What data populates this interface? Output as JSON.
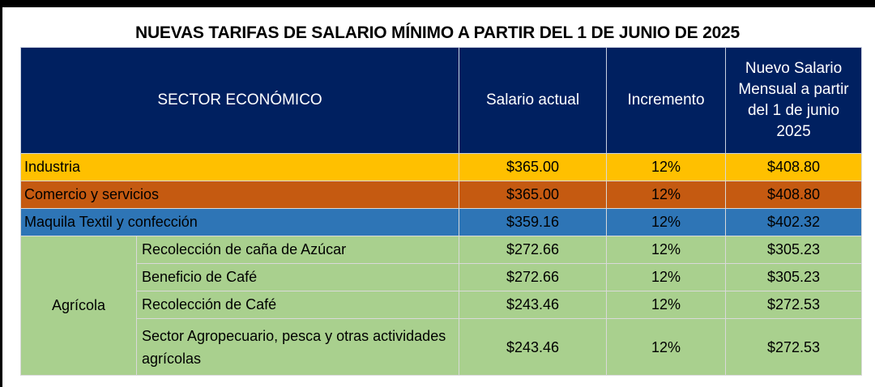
{
  "title": "NUEVAS TARIFAS DE SALARIO MÍNIMO A PARTIR DEL 1 DE JUNIO DE 2025",
  "colors": {
    "header": "#002060",
    "industria": "#FFC000",
    "comercio": "#C55A11",
    "maquila": "#2E75B6",
    "agricola": "#A9D08E"
  },
  "headers": {
    "sector": "SECTOR ECONÓMICO",
    "actual": "Salario actual",
    "incremento": "Incremento",
    "nuevo": "Nuevo Salario Mensual a partir del 1 de junio 2025"
  },
  "rows": [
    {
      "sector": "Industria",
      "actual": "$365.00",
      "incremento": "12%",
      "nuevo": "$408.80"
    },
    {
      "sector": "Comercio y servicios",
      "actual": "$365.00",
      "incremento": "12%",
      "nuevo": "$408.80"
    },
    {
      "sector": "Maquila Textil y confección",
      "actual": "$359.16",
      "incremento": "12%",
      "nuevo": "$402.32"
    }
  ],
  "agricola": {
    "label": "Agrícola",
    "rows": [
      {
        "sector": "Recolección de caña de Azúcar",
        "actual": "$272.66",
        "incremento": "12%",
        "nuevo": "$305.23"
      },
      {
        "sector": "Beneficio de Café",
        "actual": "$272.66",
        "incremento": "12%",
        "nuevo": "$305.23"
      },
      {
        "sector": "Recolección de Café",
        "actual": "$243.46",
        "incremento": "12%",
        "nuevo": "$272.53"
      },
      {
        "sector": "Sector Agropecuario, pesca y otras actividades agrícolas",
        "actual": "$243.46",
        "incremento": "12%",
        "nuevo": "$272.53"
      }
    ]
  }
}
